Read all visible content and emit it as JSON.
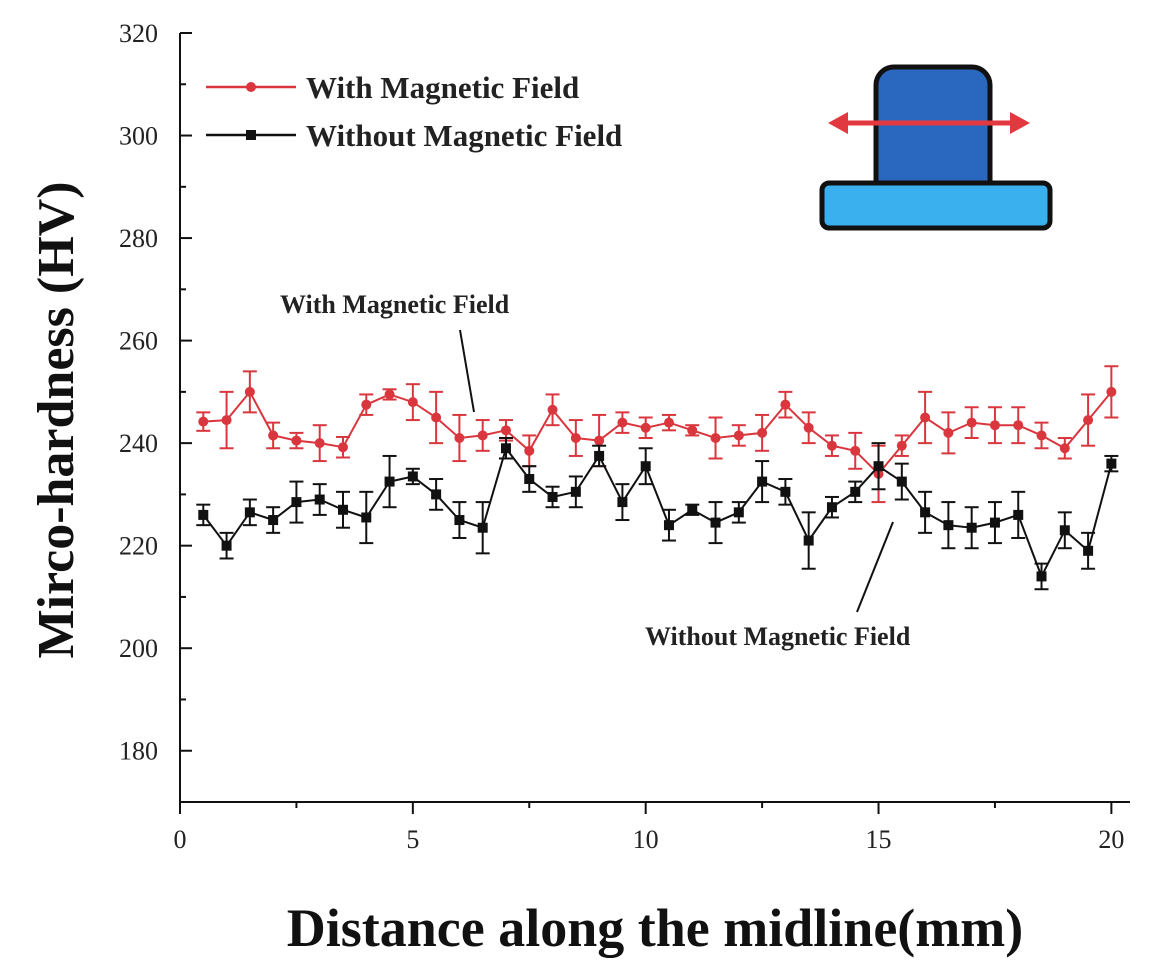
{
  "chart_data": {
    "type": "line",
    "xlabel": "Distance along the midline(mm)",
    "ylabel": "Mirco-hardness (HV)",
    "xlim": [
      0,
      20.4
    ],
    "ylim": [
      170,
      320
    ],
    "xticks": [
      0,
      5,
      10,
      15,
      20
    ],
    "yticks": [
      180,
      200,
      220,
      240,
      260,
      280,
      300,
      320
    ],
    "legend_position": "top-left",
    "grid": false,
    "series": [
      {
        "name": "With Magnetic Field",
        "color": "#d9363e",
        "marker": "circle",
        "x": [
          0.5,
          1,
          1.5,
          2,
          2.5,
          3,
          3.5,
          4,
          4.5,
          5,
          5.5,
          6,
          6.5,
          7,
          7.5,
          8,
          8.5,
          9,
          9.5,
          10,
          10.5,
          11,
          11.5,
          12,
          12.5,
          13,
          13.5,
          14,
          14.5,
          15,
          15.5,
          16,
          16.5,
          17,
          17.5,
          18,
          18.5,
          19,
          19.5,
          20
        ],
        "y": [
          244.2,
          244.5,
          250.0,
          241.5,
          240.5,
          240.0,
          239.2,
          247.5,
          249.5,
          248.0,
          245.0,
          241.0,
          241.5,
          242.5,
          238.5,
          246.5,
          241.0,
          240.5,
          244.0,
          243.0,
          244.0,
          242.5,
          241.0,
          241.5,
          242.0,
          247.5,
          243.0,
          239.5,
          238.5,
          234.0,
          239.5,
          245.0,
          242.0,
          244.0,
          243.5,
          243.5,
          241.5,
          239.0,
          244.5,
          250.0
        ],
        "err": [
          1.8,
          5.5,
          4.0,
          2.5,
          1.5,
          3.5,
          2.0,
          2.0,
          1.0,
          3.5,
          5.0,
          4.5,
          3.0,
          2.0,
          3.0,
          3.0,
          3.5,
          5.0,
          2.0,
          2.0,
          1.5,
          1.0,
          4.0,
          2.0,
          3.5,
          2.5,
          3.0,
          2.0,
          3.5,
          5.5,
          2.0,
          5.0,
          4.0,
          3.0,
          3.5,
          3.5,
          2.5,
          2.0,
          5.0,
          5.0
        ]
      },
      {
        "name": "Without Magnetic Field",
        "color": "#111111",
        "marker": "square",
        "x": [
          0.5,
          1,
          1.5,
          2,
          2.5,
          3,
          3.5,
          4,
          4.5,
          5,
          5.5,
          6,
          6.5,
          7,
          7.5,
          8,
          8.5,
          9,
          9.5,
          10,
          10.5,
          11,
          11.5,
          12,
          12.5,
          13,
          13.5,
          14,
          14.5,
          15,
          15.5,
          16,
          16.5,
          17,
          17.5,
          18,
          18.5,
          19,
          19.5,
          20
        ],
        "y": [
          226.0,
          220.0,
          226.5,
          225.0,
          228.5,
          229.0,
          227.0,
          225.5,
          232.5,
          233.5,
          230.0,
          225.0,
          223.5,
          239.0,
          233.0,
          229.5,
          230.5,
          237.5,
          228.5,
          235.5,
          224.0,
          227.0,
          224.5,
          226.5,
          232.5,
          230.5,
          221.0,
          227.5,
          230.5,
          235.5,
          232.5,
          226.5,
          224.0,
          223.5,
          224.5,
          226.0,
          214.0,
          223.0,
          219.0,
          236.0
        ],
        "err": [
          2.0,
          2.5,
          2.5,
          2.5,
          4.0,
          3.0,
          3.5,
          5.0,
          5.0,
          1.5,
          3.0,
          3.5,
          5.0,
          2.0,
          2.5,
          2.0,
          3.0,
          2.0,
          3.5,
          3.5,
          3.0,
          1.0,
          4.0,
          2.0,
          4.0,
          2.5,
          5.5,
          2.0,
          2.0,
          4.5,
          3.5,
          4.0,
          4.5,
          4.0,
          4.0,
          4.5,
          2.5,
          3.5,
          3.5,
          1.5
        ]
      }
    ],
    "annotations": [
      {
        "text": "With Magnetic Field",
        "series": 0
      },
      {
        "text": "Without Magnetic Field",
        "series": 1
      }
    ]
  },
  "inset": {
    "top_color": "#2a67bf",
    "base_color": "#3ab0ef",
    "arrow_color": "#e2383f"
  }
}
